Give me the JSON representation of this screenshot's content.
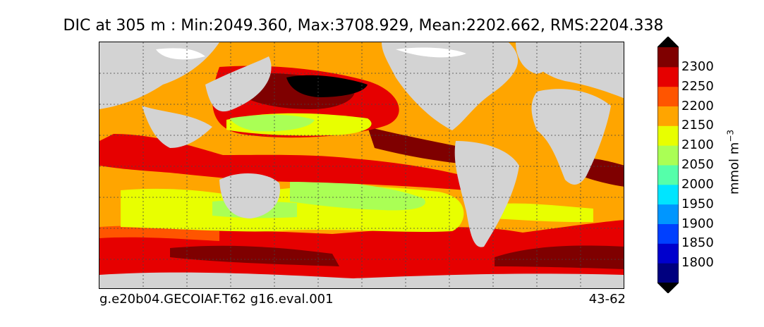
{
  "title": "DIC at 305 m : Min:2049.360, Max:3708.929, Mean:2202.662, RMS:2204.338",
  "footer": {
    "case": "g.e20b04.GECOIAF.T62 g16.eval.001",
    "years": "43-62"
  },
  "colorbar": {
    "units_base": "mmol m",
    "units_exp": "−3",
    "levels": [
      "1800",
      "1850",
      "1900",
      "1950",
      "2000",
      "2050",
      "2100",
      "2150",
      "2200",
      "2250",
      "2300"
    ],
    "colors": [
      "#00007f",
      "#0000cd",
      "#0040ff",
      "#0096ff",
      "#00e5ff",
      "#55ffaa",
      "#aaff55",
      "#e8ff00",
      "#ffa500",
      "#ff5500",
      "#e60000",
      "#7f0000"
    ],
    "land_color": "#d3d3d3",
    "ice_color": "#ffffff"
  }
}
